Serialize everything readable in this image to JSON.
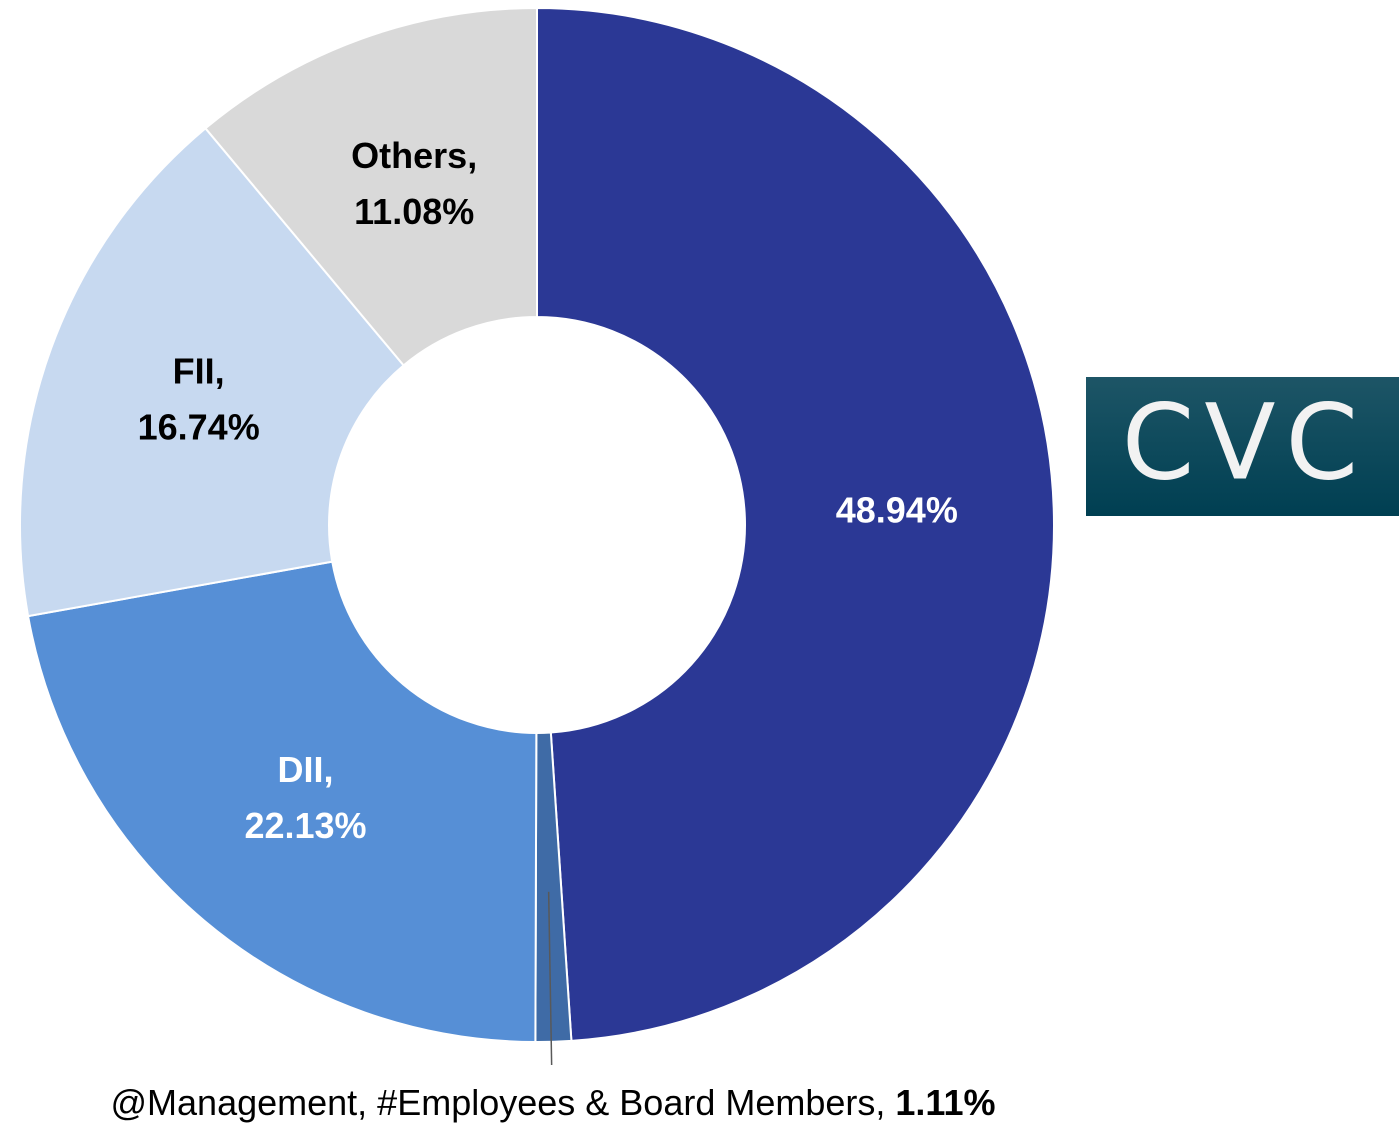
{
  "chart_data": {
    "type": "donut",
    "categories": [
      null,
      "@Management, #Employees & Board Members,",
      "DII,",
      "FII,",
      "Others,"
    ],
    "values": [
      48.94,
      1.11,
      22.13,
      16.74,
      11.08
    ],
    "value_labels": [
      "48.94%",
      "1.11%",
      "22.13%",
      "16.74%",
      "11.08%"
    ],
    "colors": [
      "#2b3895",
      "#3f6ba6",
      "#568fd6",
      "#c7d9f0",
      "#d9d9d9"
    ],
    "label_colors": [
      "#ffffff",
      "#000000",
      "#ffffff",
      "#000000",
      "#000000"
    ]
  },
  "logo": "CVC"
}
